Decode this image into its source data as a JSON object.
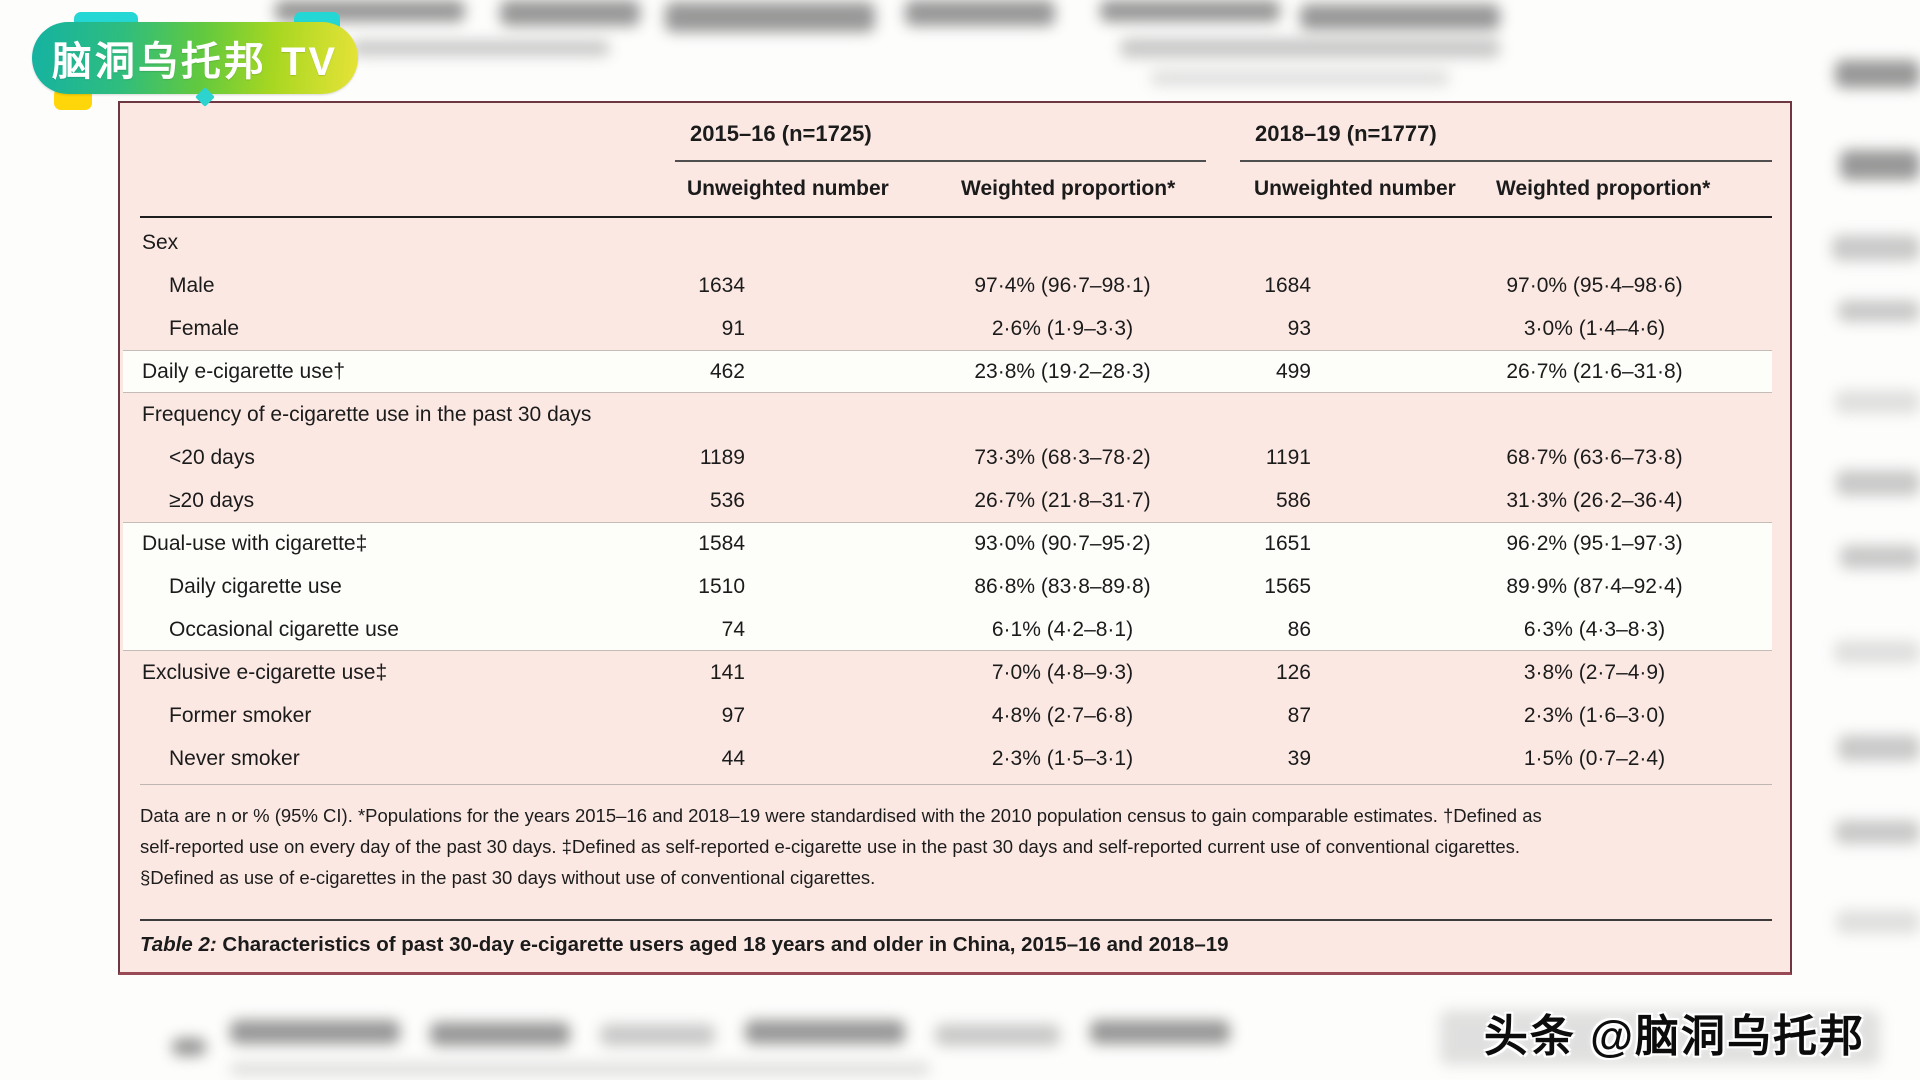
{
  "branding": {
    "logo_text": "脑洞乌托邦 TV",
    "watermark_text": "头条 @脑洞乌托邦"
  },
  "colors": {
    "table_bg": "#fbe8e3",
    "band_white": "#fdfdfa",
    "frame_border": "#6f3742",
    "bottom_rule": "#9a4a55",
    "header_rule": "#4f4f4f",
    "black_rule": "#1e1e1e",
    "logo_teal": "#14b2a2",
    "logo_yellow_green": "#e7e338",
    "tab_cyan": "#25d7d4",
    "tab_yellow": "#ffd60a"
  },
  "table": {
    "groups": [
      {
        "title": "2015–16 (n=1725)"
      },
      {
        "title": "2018–19 (n=1777)"
      }
    ],
    "column_headers": [
      "Unweighted number",
      "Weighted proportion*",
      "Unweighted number",
      "Weighted proportion*"
    ],
    "rows": [
      {
        "label": "Sex",
        "indent": 0,
        "band": "pink",
        "values": [
          "",
          "",
          "",
          ""
        ]
      },
      {
        "label": "Male",
        "indent": 1,
        "band": "pink",
        "values": [
          "1634",
          "97·4% (96·7–98·1)",
          "1684",
          "97·0% (95·4–98·6)"
        ]
      },
      {
        "label": "Female",
        "indent": 1,
        "band": "pink",
        "values": [
          "91",
          "2·6% (1·9–3·3)",
          "93",
          "3·0% (1·4–4·6)"
        ]
      },
      {
        "label": "Daily e-cigarette use†",
        "indent": 0,
        "band": "white",
        "values": [
          "462",
          "23·8% (19·2–28·3)",
          "499",
          "26·7% (21·6–31·8)"
        ]
      },
      {
        "label": "Frequency of e-cigarette use in the past 30 days",
        "indent": 0,
        "band": "pink",
        "values": [
          "",
          "",
          "",
          ""
        ]
      },
      {
        "label": "<20 days",
        "indent": 1,
        "band": "pink",
        "values": [
          "1189",
          "73·3% (68·3–78·2)",
          "1191",
          "68·7% (63·6–73·8)"
        ]
      },
      {
        "label": "≥20 days",
        "indent": 1,
        "band": "pink",
        "values": [
          "536",
          "26·7% (21·8–31·7)",
          "586",
          "31·3% (26·2–36·4)"
        ]
      },
      {
        "label": "Dual-use with cigarette‡",
        "indent": 0,
        "band": "white",
        "values": [
          "1584",
          "93·0% (90·7–95·2)",
          "1651",
          "96·2% (95·1–97·3)"
        ]
      },
      {
        "label": "Daily cigarette use",
        "indent": 1,
        "band": "white",
        "values": [
          "1510",
          "86·8% (83·8–89·8)",
          "1565",
          "89·9% (87·4–92·4)"
        ]
      },
      {
        "label": "Occasional cigarette use",
        "indent": 1,
        "band": "white",
        "values": [
          "74",
          "6·1% (4·2–8·1)",
          "86",
          "6·3% (4·3–8·3)"
        ]
      },
      {
        "label": "Exclusive e-cigarette use‡",
        "indent": 0,
        "band": "pink",
        "values": [
          "141",
          "7·0% (4·8–9·3)",
          "126",
          "3·8% (2·7–4·9)"
        ]
      },
      {
        "label": "Former smoker",
        "indent": 1,
        "band": "pink",
        "values": [
          "97",
          "4·8% (2·7–6·8)",
          "87",
          "2·3% (1·6–3·0)"
        ]
      },
      {
        "label": "Never smoker",
        "indent": 1,
        "band": "pink",
        "values": [
          "44",
          "2·3% (1·5–3·1)",
          "39",
          "1·5% (0·7–2·4)"
        ]
      }
    ],
    "footnote_lines": [
      "Data are n or % (95% CI). *Populations for the years 2015–16 and 2018–19 were standardised with the 2010 population census to gain comparable estimates. †Defined as",
      "self-reported use on every day of the past 30 days. ‡Defined as self-reported e-cigarette use in the past 30 days and self-reported current use of conventional cigarettes.",
      "§Defined as use of e-cigarettes in the past 30 days without use of conventional cigarettes."
    ],
    "caption_prefix": "Table 2:",
    "caption_text": " Characteristics of past 30-day e-cigarette users aged 18 years and older in China, 2015–16 and 2018–19"
  }
}
